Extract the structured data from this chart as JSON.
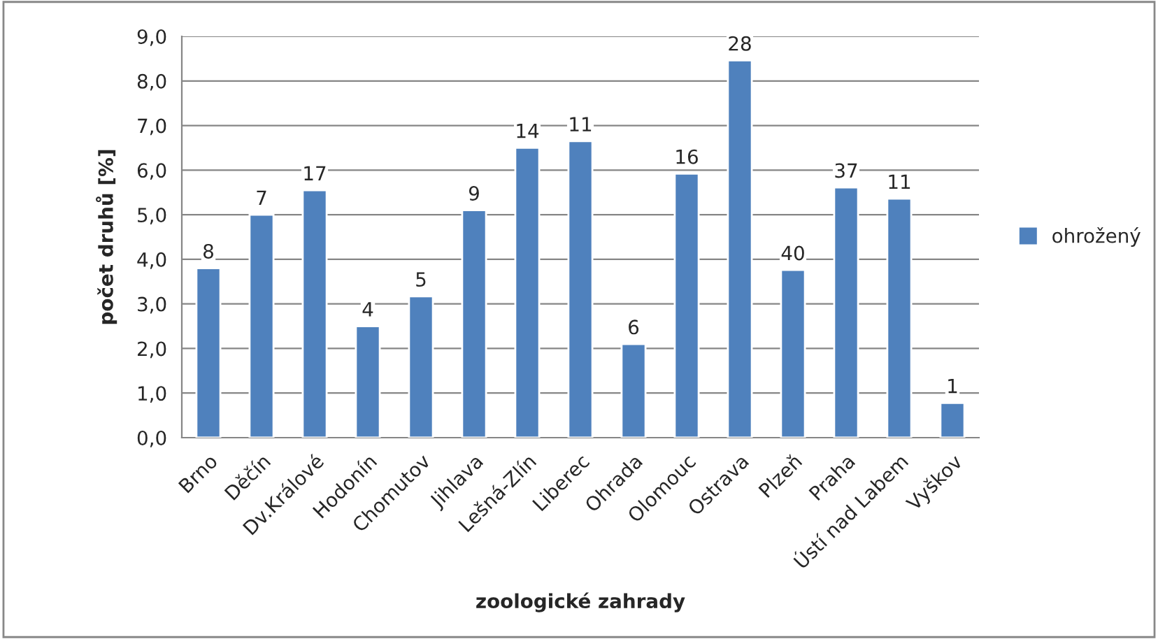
{
  "chart_data": {
    "type": "bar",
    "xlabel": "zoologické zahrady",
    "ylabel": "počet druhů [%]",
    "categories": [
      "Brno",
      "Děčín",
      "Dv.Králové",
      "Hodonín",
      "Chomutov",
      "Jihlava",
      "Lešná-Zlín",
      "Liberec",
      "Ohrada",
      "Olomouc",
      "Ostrava",
      "Plzeň",
      "Praha",
      "Ústí nad Labem",
      "Vyškov"
    ],
    "series": [
      {
        "name": "ohrožený",
        "color": "#4f81bd",
        "values": [
          3.8,
          5.0,
          5.55,
          2.5,
          3.17,
          5.1,
          6.5,
          6.65,
          2.1,
          5.92,
          8.46,
          3.76,
          5.61,
          5.36,
          0.78
        ]
      }
    ],
    "annotations": [
      {
        "text": "8",
        "x": "Brno",
        "y": 3.8
      },
      {
        "text": "7",
        "x": "Děčín",
        "y": 5.0
      },
      {
        "text": "17",
        "x": "Dv.Králové",
        "y": 5.55
      },
      {
        "text": "4",
        "x": "Hodonín",
        "y": 2.5
      },
      {
        "text": "5",
        "x": "Chomutov",
        "y": 3.17
      },
      {
        "text": "9",
        "x": "Jihlava",
        "y": 5.1
      },
      {
        "text": "14",
        "x": "Lešná-Zlín",
        "y": 6.5
      },
      {
        "text": "11",
        "x": "Liberec",
        "y": 6.65
      },
      {
        "text": "6",
        "x": "Ohrada",
        "y": 2.1
      },
      {
        "text": "16",
        "x": "Olomouc",
        "y": 5.92
      },
      {
        "text": "28",
        "x": "Ostrava",
        "y": 8.46
      },
      {
        "text": "40",
        "x": "Plzeň",
        "y": 3.76
      },
      {
        "text": "37",
        "x": "Praha",
        "y": 5.61
      },
      {
        "text": "11",
        "x": "Ústí nad Labem",
        "y": 5.36
      },
      {
        "text": "1",
        "x": "Vyškov",
        "y": 0.78
      }
    ],
    "ylim": [
      0,
      9
    ],
    "yticks": [
      {
        "value": 0,
        "label": "0,0"
      },
      {
        "value": 1,
        "label": "1,0"
      },
      {
        "value": 2,
        "label": "2,0"
      },
      {
        "value": 3,
        "label": "3,0"
      },
      {
        "value": 4,
        "label": "4,0"
      },
      {
        "value": 5,
        "label": "5,0"
      },
      {
        "value": 6,
        "label": "6,0"
      },
      {
        "value": 7,
        "label": "7,0"
      },
      {
        "value": 8,
        "label": "8,0"
      },
      {
        "value": 9,
        "label": "9,0"
      }
    ],
    "grid": "y",
    "legend": "right"
  }
}
